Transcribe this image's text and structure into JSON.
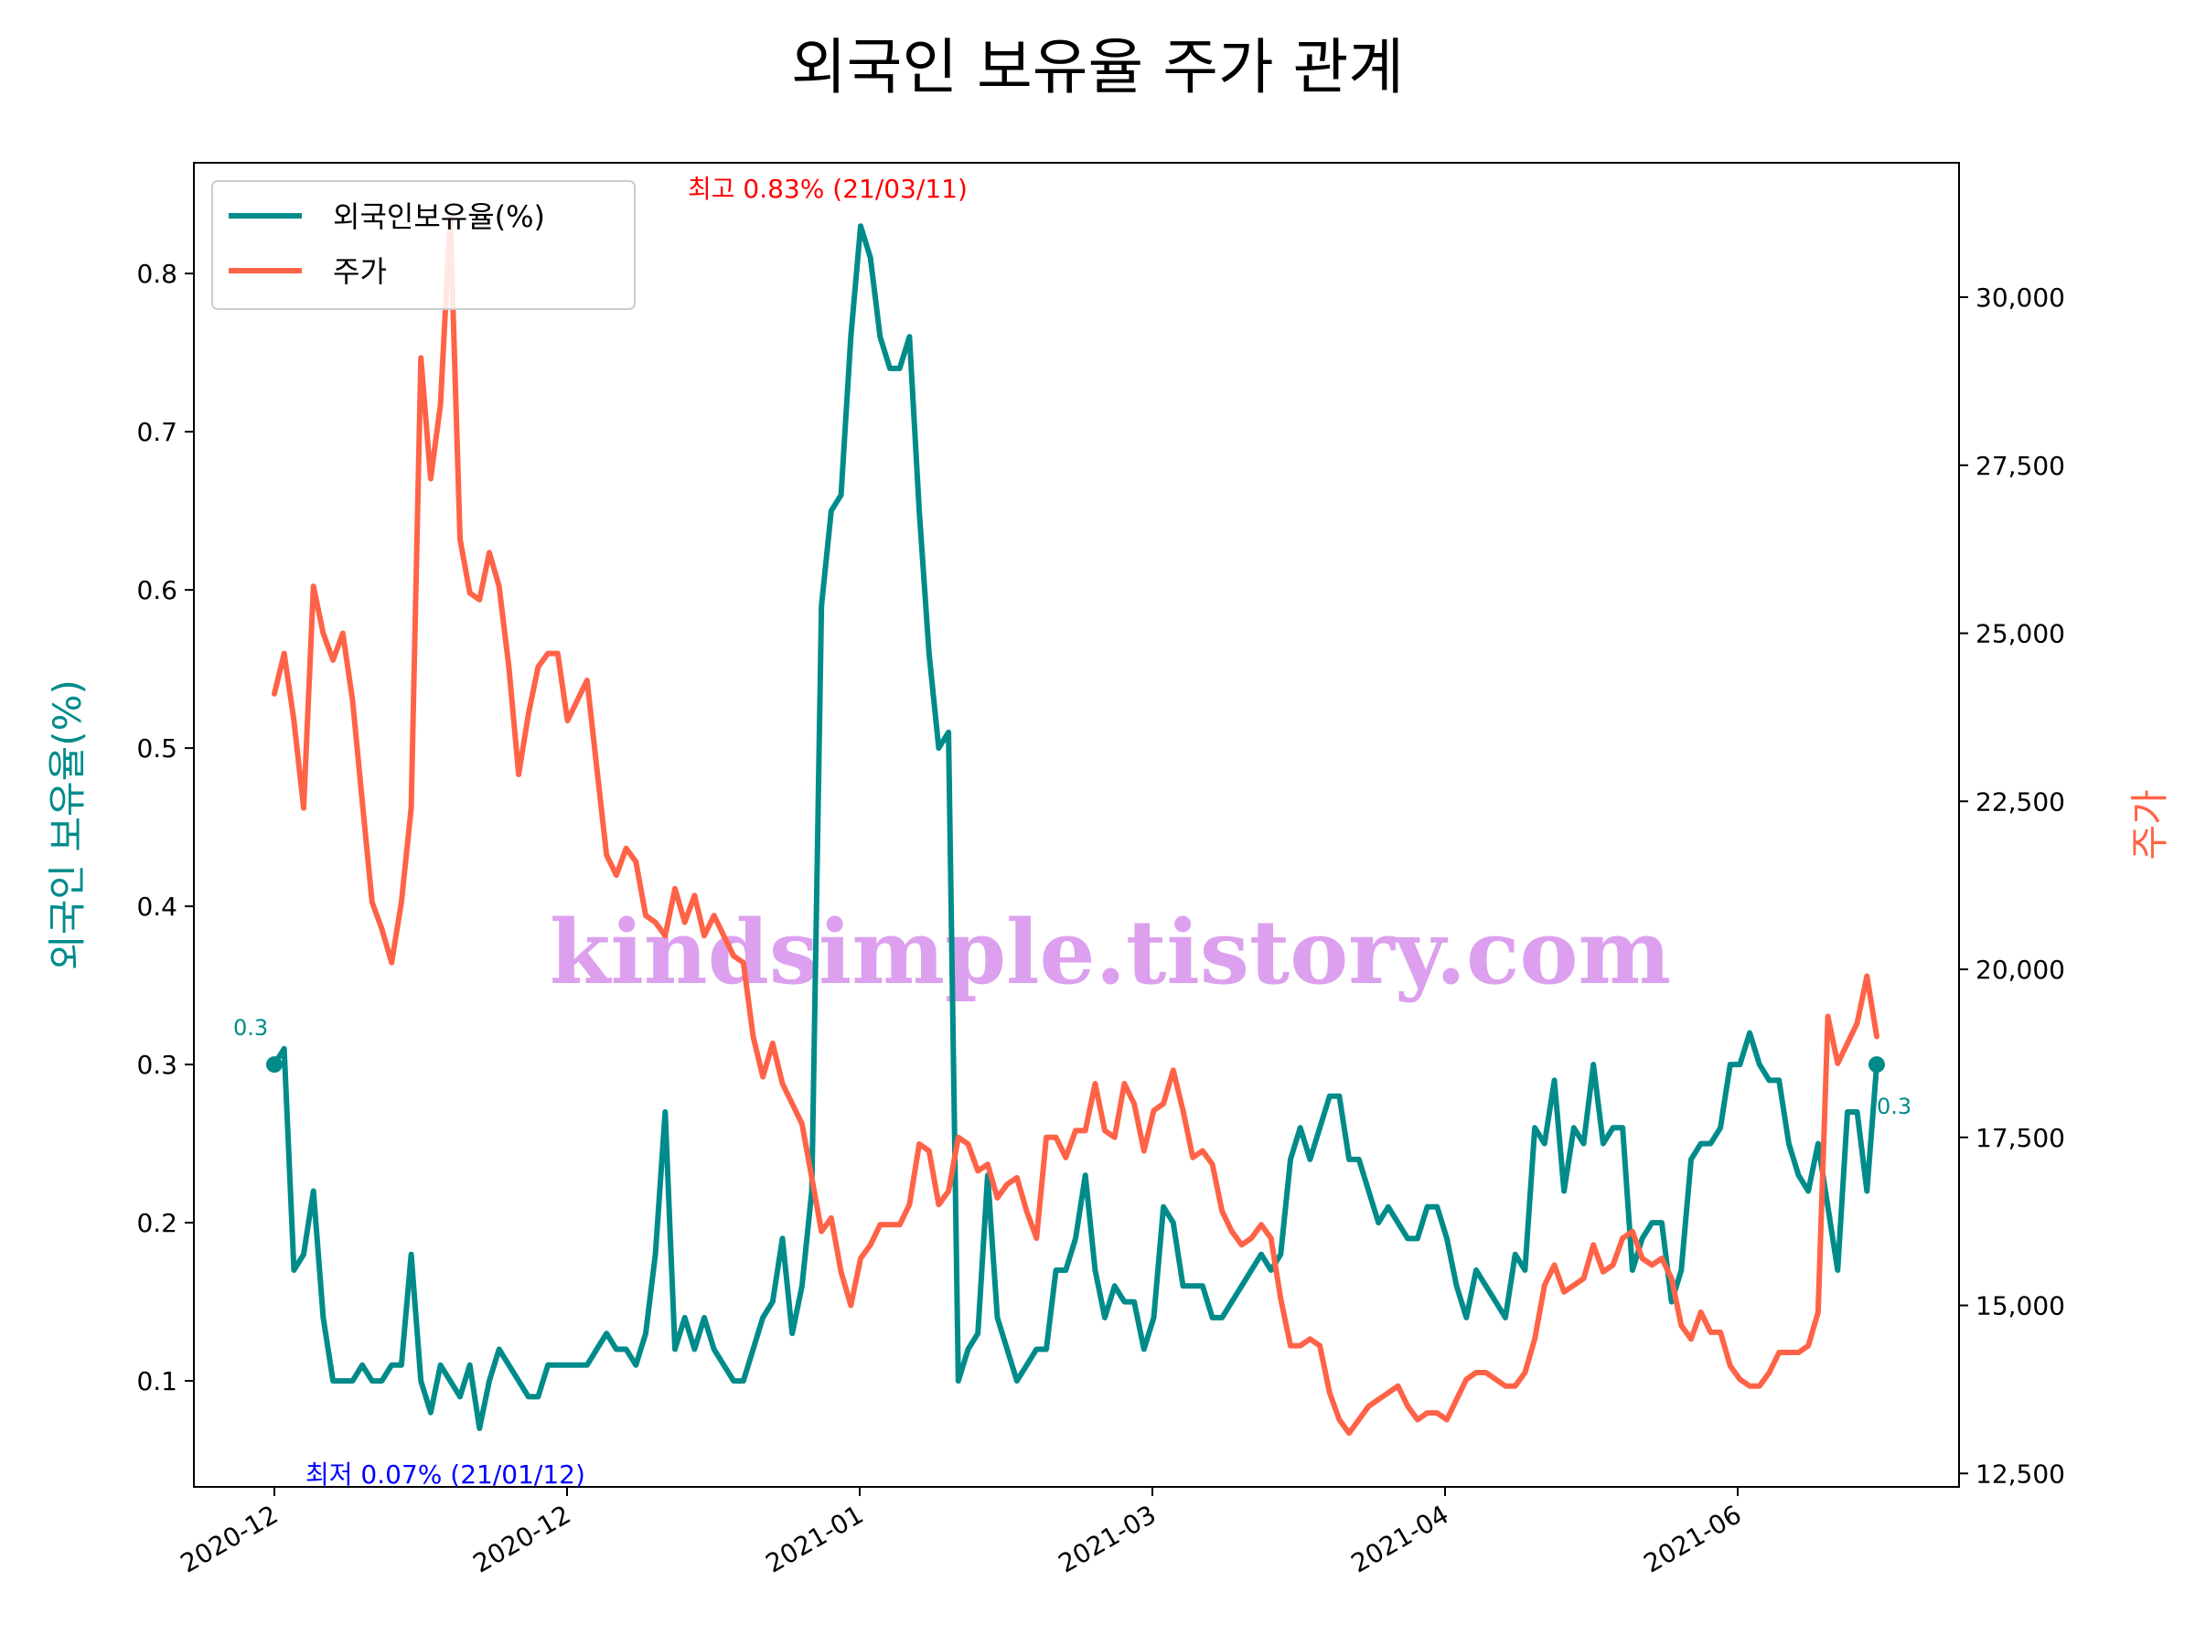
{
  "chart_data": {
    "type": "line",
    "title": "외국인 보유율 주가 관계",
    "ylabel_left": "외국인 보유율(%)",
    "ylabel_right": "주가",
    "ylim_left": [
      0.033,
      0.87
    ],
    "ylim_right": [
      12300,
      32000
    ],
    "yticks_left": [
      "0.1",
      "0.2",
      "0.3",
      "0.4",
      "0.5",
      "0.6",
      "0.7",
      "0.8"
    ],
    "yticks_right": [
      "12,500",
      "15,000",
      "17,500",
      "20,000",
      "22,500",
      "25,000",
      "27,500",
      "30,000"
    ],
    "xticks": [
      "2020-12",
      "2020-12",
      "2021-01",
      "2021-03",
      "2021-04",
      "2021-06"
    ],
    "grid": false,
    "legend": {
      "placement": "top-left",
      "entries": [
        "외국인보유율(%)",
        "주가"
      ]
    },
    "colors": {
      "ownership": "#008B8B",
      "price": "#FF6347",
      "max_annotation": "#FF0000",
      "min_annotation": "#0000FF",
      "watermark": "#DDA0EE"
    },
    "annotations": {
      "max": "최고 0.83% (21/03/11)",
      "min": "최저 0.07% (21/01/12)",
      "start_value": "0.3",
      "end_value": "0.3"
    },
    "watermark": "kindsimple.tistory.com",
    "series": [
      {
        "name": "외국인보유율(%)",
        "axis": "left",
        "values": [
          0.3,
          0.31,
          0.17,
          0.18,
          0.22,
          0.14,
          0.1,
          0.1,
          0.1,
          0.11,
          0.1,
          0.1,
          0.11,
          0.11,
          0.18,
          0.1,
          0.08,
          0.11,
          0.1,
          0.09,
          0.11,
          0.07,
          0.1,
          0.12,
          0.11,
          0.1,
          0.09,
          0.09,
          0.11,
          0.11,
          0.11,
          0.11,
          0.11,
          0.12,
          0.13,
          0.12,
          0.12,
          0.11,
          0.13,
          0.18,
          0.27,
          0.12,
          0.14,
          0.12,
          0.14,
          0.12,
          0.11,
          0.1,
          0.1,
          0.12,
          0.14,
          0.15,
          0.19,
          0.13,
          0.16,
          0.22,
          0.59,
          0.65,
          0.66,
          0.76,
          0.83,
          0.81,
          0.76,
          0.74,
          0.74,
          0.76,
          0.65,
          0.56,
          0.5,
          0.51,
          0.1,
          0.12,
          0.13,
          0.23,
          0.14,
          0.12,
          0.1,
          0.11,
          0.12,
          0.12,
          0.17,
          0.17,
          0.19,
          0.23,
          0.17,
          0.14,
          0.16,
          0.15,
          0.15,
          0.12,
          0.14,
          0.21,
          0.2,
          0.16,
          0.16,
          0.16,
          0.14,
          0.14,
          0.15,
          0.16,
          0.17,
          0.18,
          0.17,
          0.18,
          0.24,
          0.26,
          0.24,
          0.26,
          0.28,
          0.28,
          0.24,
          0.24,
          0.22,
          0.2,
          0.21,
          0.2,
          0.19,
          0.19,
          0.21,
          0.21,
          0.19,
          0.16,
          0.14,
          0.17,
          0.16,
          0.15,
          0.14,
          0.18,
          0.17,
          0.26,
          0.25,
          0.29,
          0.22,
          0.26,
          0.25,
          0.3,
          0.25,
          0.26,
          0.26,
          0.17,
          0.19,
          0.2,
          0.2,
          0.15,
          0.17,
          0.24,
          0.25,
          0.25,
          0.26,
          0.3,
          0.3,
          0.32,
          0.3,
          0.29,
          0.29,
          0.25,
          0.23,
          0.22,
          0.25,
          0.21,
          0.17,
          0.27,
          0.27,
          0.22,
          0.3
        ]
      },
      {
        "name": "주가",
        "axis": "right",
        "values": [
          24100,
          24700,
          23700,
          22400,
          25700,
          25000,
          24600,
          25000,
          24000,
          22500,
          21000,
          20600,
          20100,
          21000,
          22400,
          29100,
          27300,
          28400,
          31200,
          26400,
          25600,
          25500,
          26200,
          25700,
          24500,
          22900,
          23800,
          24500,
          24700,
          24700,
          23700,
          24000,
          24300,
          23000,
          21700,
          21400,
          21800,
          21600,
          20800,
          20700,
          20500,
          21200,
          20700,
          21100,
          20500,
          20800,
          20500,
          20200,
          20100,
          19000,
          18400,
          18900,
          18300,
          18000,
          17700,
          16900,
          16100,
          16300,
          15500,
          15000,
          15700,
          15900,
          16200,
          16200,
          16200,
          16500,
          17400,
          17300,
          16500,
          16700,
          17500,
          17400,
          17000,
          17100,
          16600,
          16800,
          16900,
          16400,
          16000,
          17500,
          17500,
          17200,
          17600,
          17600,
          18300,
          17600,
          17500,
          18300,
          18000,
          17300,
          17900,
          18000,
          18500,
          17900,
          17200,
          17300,
          17100,
          16400,
          16100,
          15900,
          16000,
          16200,
          16000,
          15100,
          14400,
          14400,
          14500,
          14400,
          13700,
          13300,
          13100,
          13300,
          13500,
          13600,
          13700,
          13800,
          13500,
          13300,
          13400,
          13400,
          13300,
          13600,
          13900,
          14000,
          14000,
          13900,
          13800,
          13800,
          14000,
          14500,
          15300,
          15600,
          15200,
          15300,
          15400,
          15900,
          15500,
          15600,
          16000,
          16100,
          15700,
          15600,
          15700,
          15400,
          14700,
          14500,
          14900,
          14600,
          14600,
          14100,
          13900,
          13800,
          13800,
          14000,
          14300,
          14300,
          14300,
          14400,
          14900,
          19300,
          18600,
          18900,
          19200,
          19900,
          19000
        ]
      }
    ]
  }
}
